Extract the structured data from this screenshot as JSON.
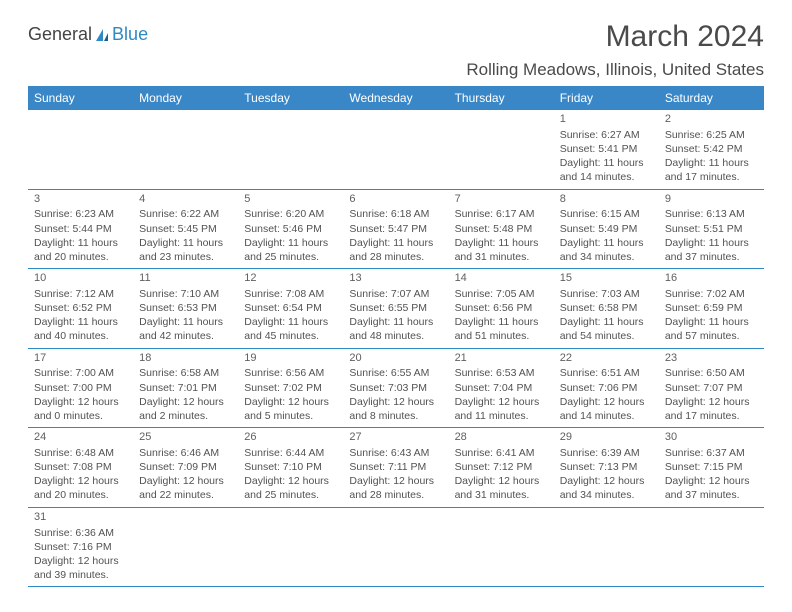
{
  "logo": {
    "text1": "General",
    "text2": "Blue"
  },
  "title": "March 2024",
  "location": "Rolling Meadows, Illinois, United States",
  "weekdays": [
    "Sunday",
    "Monday",
    "Tuesday",
    "Wednesday",
    "Thursday",
    "Friday",
    "Saturday"
  ],
  "colors": {
    "headerBg": "#3a87c8",
    "headerText": "#ffffff",
    "cellBorder": "#2f89c5",
    "bodyText": "#525252",
    "titleText": "#4a4a4a"
  },
  "weeks": [
    [
      null,
      null,
      null,
      null,
      null,
      {
        "day": "1",
        "sunrise": "Sunrise: 6:27 AM",
        "sunset": "Sunset: 5:41 PM",
        "daylight": "Daylight: 11 hours and 14 minutes."
      },
      {
        "day": "2",
        "sunrise": "Sunrise: 6:25 AM",
        "sunset": "Sunset: 5:42 PM",
        "daylight": "Daylight: 11 hours and 17 minutes."
      }
    ],
    [
      {
        "day": "3",
        "sunrise": "Sunrise: 6:23 AM",
        "sunset": "Sunset: 5:44 PM",
        "daylight": "Daylight: 11 hours and 20 minutes."
      },
      {
        "day": "4",
        "sunrise": "Sunrise: 6:22 AM",
        "sunset": "Sunset: 5:45 PM",
        "daylight": "Daylight: 11 hours and 23 minutes."
      },
      {
        "day": "5",
        "sunrise": "Sunrise: 6:20 AM",
        "sunset": "Sunset: 5:46 PM",
        "daylight": "Daylight: 11 hours and 25 minutes."
      },
      {
        "day": "6",
        "sunrise": "Sunrise: 6:18 AM",
        "sunset": "Sunset: 5:47 PM",
        "daylight": "Daylight: 11 hours and 28 minutes."
      },
      {
        "day": "7",
        "sunrise": "Sunrise: 6:17 AM",
        "sunset": "Sunset: 5:48 PM",
        "daylight": "Daylight: 11 hours and 31 minutes."
      },
      {
        "day": "8",
        "sunrise": "Sunrise: 6:15 AM",
        "sunset": "Sunset: 5:49 PM",
        "daylight": "Daylight: 11 hours and 34 minutes."
      },
      {
        "day": "9",
        "sunrise": "Sunrise: 6:13 AM",
        "sunset": "Sunset: 5:51 PM",
        "daylight": "Daylight: 11 hours and 37 minutes."
      }
    ],
    [
      {
        "day": "10",
        "sunrise": "Sunrise: 7:12 AM",
        "sunset": "Sunset: 6:52 PM",
        "daylight": "Daylight: 11 hours and 40 minutes."
      },
      {
        "day": "11",
        "sunrise": "Sunrise: 7:10 AM",
        "sunset": "Sunset: 6:53 PM",
        "daylight": "Daylight: 11 hours and 42 minutes."
      },
      {
        "day": "12",
        "sunrise": "Sunrise: 7:08 AM",
        "sunset": "Sunset: 6:54 PM",
        "daylight": "Daylight: 11 hours and 45 minutes."
      },
      {
        "day": "13",
        "sunrise": "Sunrise: 7:07 AM",
        "sunset": "Sunset: 6:55 PM",
        "daylight": "Daylight: 11 hours and 48 minutes."
      },
      {
        "day": "14",
        "sunrise": "Sunrise: 7:05 AM",
        "sunset": "Sunset: 6:56 PM",
        "daylight": "Daylight: 11 hours and 51 minutes."
      },
      {
        "day": "15",
        "sunrise": "Sunrise: 7:03 AM",
        "sunset": "Sunset: 6:58 PM",
        "daylight": "Daylight: 11 hours and 54 minutes."
      },
      {
        "day": "16",
        "sunrise": "Sunrise: 7:02 AM",
        "sunset": "Sunset: 6:59 PM",
        "daylight": "Daylight: 11 hours and 57 minutes."
      }
    ],
    [
      {
        "day": "17",
        "sunrise": "Sunrise: 7:00 AM",
        "sunset": "Sunset: 7:00 PM",
        "daylight": "Daylight: 12 hours and 0 minutes."
      },
      {
        "day": "18",
        "sunrise": "Sunrise: 6:58 AM",
        "sunset": "Sunset: 7:01 PM",
        "daylight": "Daylight: 12 hours and 2 minutes."
      },
      {
        "day": "19",
        "sunrise": "Sunrise: 6:56 AM",
        "sunset": "Sunset: 7:02 PM",
        "daylight": "Daylight: 12 hours and 5 minutes."
      },
      {
        "day": "20",
        "sunrise": "Sunrise: 6:55 AM",
        "sunset": "Sunset: 7:03 PM",
        "daylight": "Daylight: 12 hours and 8 minutes."
      },
      {
        "day": "21",
        "sunrise": "Sunrise: 6:53 AM",
        "sunset": "Sunset: 7:04 PM",
        "daylight": "Daylight: 12 hours and 11 minutes."
      },
      {
        "day": "22",
        "sunrise": "Sunrise: 6:51 AM",
        "sunset": "Sunset: 7:06 PM",
        "daylight": "Daylight: 12 hours and 14 minutes."
      },
      {
        "day": "23",
        "sunrise": "Sunrise: 6:50 AM",
        "sunset": "Sunset: 7:07 PM",
        "daylight": "Daylight: 12 hours and 17 minutes."
      }
    ],
    [
      {
        "day": "24",
        "sunrise": "Sunrise: 6:48 AM",
        "sunset": "Sunset: 7:08 PM",
        "daylight": "Daylight: 12 hours and 20 minutes."
      },
      {
        "day": "25",
        "sunrise": "Sunrise: 6:46 AM",
        "sunset": "Sunset: 7:09 PM",
        "daylight": "Daylight: 12 hours and 22 minutes."
      },
      {
        "day": "26",
        "sunrise": "Sunrise: 6:44 AM",
        "sunset": "Sunset: 7:10 PM",
        "daylight": "Daylight: 12 hours and 25 minutes."
      },
      {
        "day": "27",
        "sunrise": "Sunrise: 6:43 AM",
        "sunset": "Sunset: 7:11 PM",
        "daylight": "Daylight: 12 hours and 28 minutes."
      },
      {
        "day": "28",
        "sunrise": "Sunrise: 6:41 AM",
        "sunset": "Sunset: 7:12 PM",
        "daylight": "Daylight: 12 hours and 31 minutes."
      },
      {
        "day": "29",
        "sunrise": "Sunrise: 6:39 AM",
        "sunset": "Sunset: 7:13 PM",
        "daylight": "Daylight: 12 hours and 34 minutes."
      },
      {
        "day": "30",
        "sunrise": "Sunrise: 6:37 AM",
        "sunset": "Sunset: 7:15 PM",
        "daylight": "Daylight: 12 hours and 37 minutes."
      }
    ],
    [
      {
        "day": "31",
        "sunrise": "Sunrise: 6:36 AM",
        "sunset": "Sunset: 7:16 PM",
        "daylight": "Daylight: 12 hours and 39 minutes."
      },
      null,
      null,
      null,
      null,
      null,
      null
    ]
  ]
}
